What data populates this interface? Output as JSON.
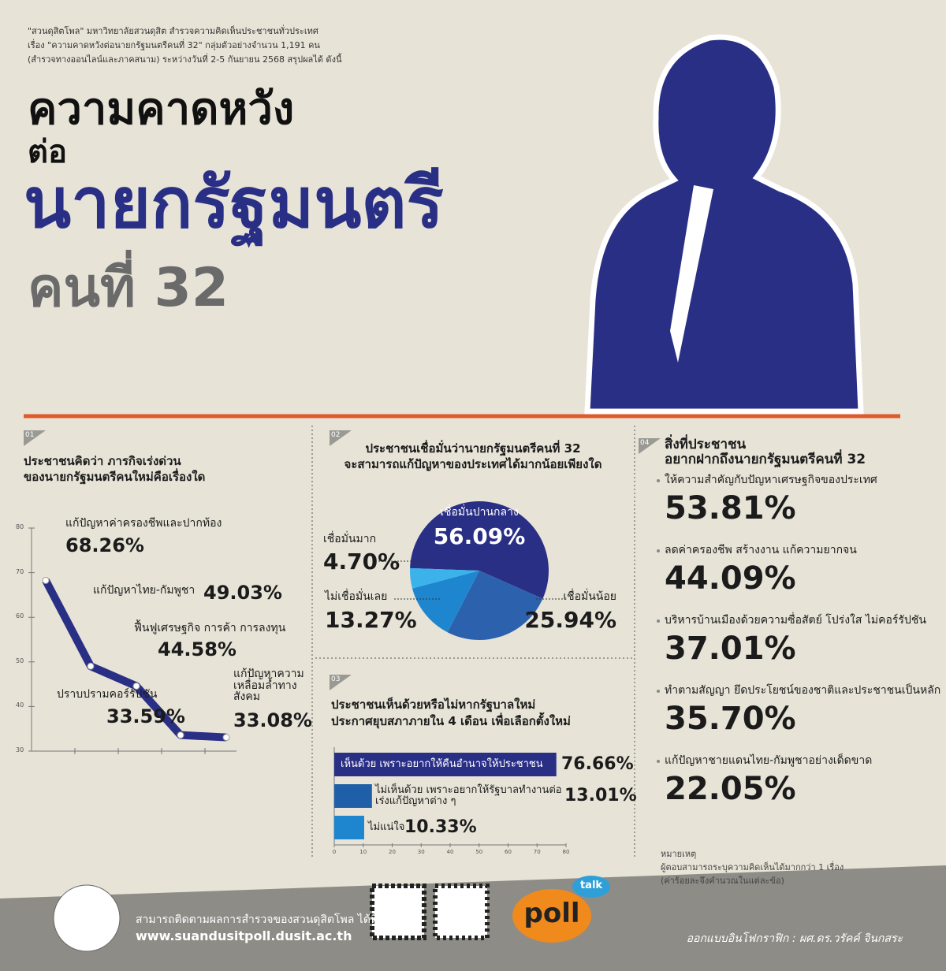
{
  "intro": [
    "\"สวนดุสิตโพล\" มหาวิทยาลัยสวนดุสิต สำรวจความคิดเห็นประชาชนทั่วประเทศ",
    "เรื่อง \"ความคาดหวังต่อนายกรัฐมนตรีคนที่ 32\" กลุ่มตัวอย่างจำนวน 1,191 คน",
    "(สำรวจทางออนไลน์และภาคสนาม) ระหว่างวันที่ 2-5 กันยายน 2568 สรุปผลได้ ดังนี้"
  ],
  "title": [
    "ความคาดหวัง",
    "ต่อ",
    "นายกรัฐมนตรี",
    "คนที่ 32"
  ],
  "sections": [
    {
      "number": "01",
      "title": [
        "ประชาชนคิดว่า ภารกิจเร่งด่วน",
        "ของนายกรัฐมนตรีคนใหม่คือเรื่องใด"
      ],
      "chart": {
        "type": "line",
        "categories": [
          "แก้ปัญหาค่าครองชีพและปากท้อง",
          "แก้ปัญหาไทย-กัมพูชา",
          "ฟื้นฟูเศรษฐกิจ การค้า การลงทุน",
          "ปราบปรามคอร์รัปชัน",
          "แก้ปัญหาความเหลื่อมล้ำทางสังคม"
        ],
        "values": [
          68.26,
          49.03,
          44.58,
          33.59,
          33.08
        ],
        "value_labels": [
          "68.26%",
          "49.03%",
          "44.58%",
          "33.59%",
          "33.08%"
        ],
        "ylim": [
          30,
          80
        ],
        "yticks": [
          30,
          40,
          50,
          60,
          70,
          80
        ],
        "color": "#2a2f86"
      }
    },
    {
      "number": "02",
      "title": [
        "ประชาชนเชื่อมั่นว่านายกรัฐมนตรีคนที่ 32",
        "จะสามารถแก้ปัญหาของประเทศได้มากน้อยเพียงใด"
      ],
      "chart": {
        "type": "pie",
        "categories": [
          "เชื่อมั่นปานกลาง",
          "เชื่อมั่นน้อย",
          "ไม่เชื่อมั่นเลย",
          "เชื่อมั่นมาก"
        ],
        "values": [
          56.09,
          25.94,
          13.27,
          4.7
        ],
        "value_labels": [
          "56.09%",
          "25.94%",
          "13.27%",
          "4.70%"
        ],
        "colors": [
          "#2a2f86",
          "#2c62ad",
          "#1e86cf",
          "#3bb2ea"
        ]
      }
    },
    {
      "number": "03",
      "title": [
        "ประชาชนเห็นด้วยหรือไม่หากรัฐบาลใหม่",
        "ประกาศยุบสภาภายใน 4 เดือน เพื่อเลือกตั้งใหม่"
      ],
      "chart": {
        "type": "bar",
        "categories": [
          "เห็นด้วย เพราะอยากให้คืนอำนาจให้ประชาชน",
          "ไม่เห็นด้วย เพราะอยากให้รัฐบาลทำงานต่อ เร่งแก้ปัญหาต่าง ๆ",
          "ไม่แน่ใจ"
        ],
        "values": [
          76.66,
          13.01,
          10.33
        ],
        "value_labels": [
          "76.66%",
          "13.01%",
          "10.33%"
        ],
        "xlim": [
          0,
          80
        ],
        "xticks": [
          0,
          10,
          20,
          30,
          40,
          50,
          60,
          70,
          80
        ],
        "colors": [
          "#2a2f86",
          "#1f5fa8",
          "#1e86cf"
        ]
      }
    },
    {
      "number": "04",
      "title": [
        "สิ่งที่ประชาชน",
        "อยากฝากถึงนายกรัฐมนตรีคนที่ 32"
      ],
      "items": [
        {
          "label": "ให้ความสำคัญกับปัญหาเศรษฐกิจของประเทศ",
          "value": "53.81%"
        },
        {
          "label": "ลดค่าครองชีพ สร้างงาน แก้ความยากจน",
          "value": "44.09%"
        },
        {
          "label": "บริหารบ้านเมืองด้วยความซื่อสัตย์ โปร่งใส ไม่คอร์รัปชัน",
          "value": "37.01%"
        },
        {
          "label": "ทำตามสัญญา ยึดประโยชน์ของชาติและประชาชนเป็นหลัก",
          "value": "35.70%"
        },
        {
          "label": "แก้ปัญหาชายแดนไทย-กัมพูชาอย่างเด็ดขาด",
          "value": "22.05%"
        }
      ]
    }
  ],
  "notes": [
    "หมายเหตุ",
    "ผู้ตอบสามารถระบุความคิดเห็นได้มากกว่า 1 เรื่อง",
    "(ค่าร้อยละจึงคำนวณในแต่ละข้อ)"
  ],
  "footer": {
    "follow": "สามารถติดตามผลการสำรวจของสวนดุสิตโพล ได้ที่",
    "url": "www.suandusitpoll.dusit.ac.th",
    "logo": "poll",
    "logo_badge": "talk",
    "designer": "ออกแบบอินโฟกราฟิก : ผศ.ดร.วรัคค์ จินกสระ"
  }
}
